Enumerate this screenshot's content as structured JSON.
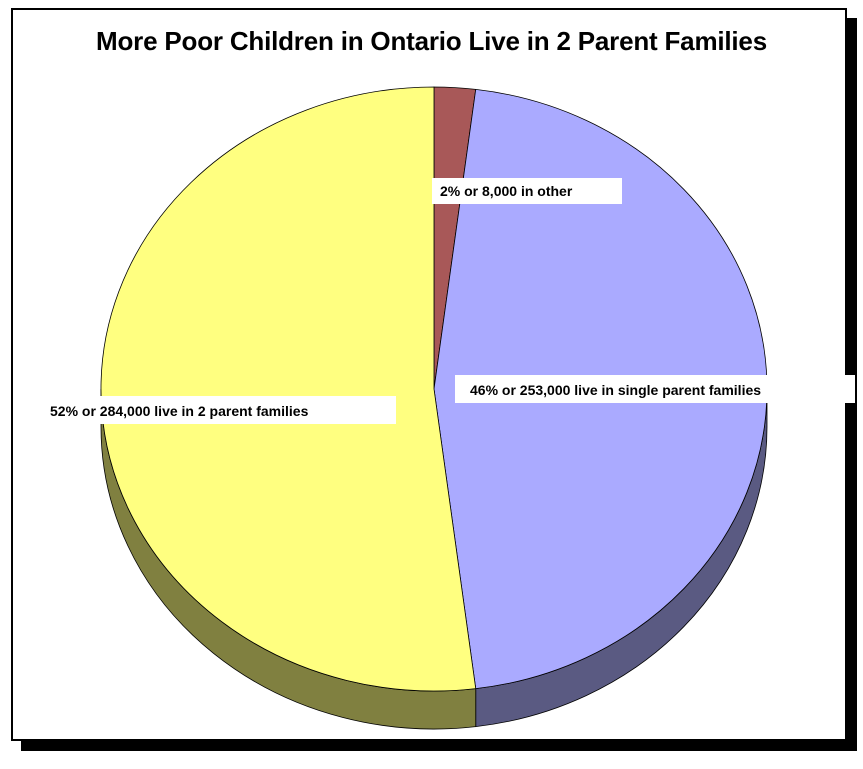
{
  "chart_data": {
    "type": "pie",
    "title": "More Poor Children in Ontario Live in 2 Parent Families",
    "slices": [
      {
        "label": "2% or 8,000 in other",
        "percent": 2,
        "value": 8000,
        "color": "#a85858",
        "side_color": "#6e3a3a"
      },
      {
        "label": "46% or 253,000 live in single parent families",
        "percent": 46,
        "value": 253000,
        "color": "#aaaaff",
        "side_color": "#5a5a82"
      },
      {
        "label": "52% or 284,000 live in 2 parent families",
        "percent": 52,
        "value": 284000,
        "color": "#ffff80",
        "side_color": "#808040"
      }
    ],
    "legend": "none",
    "style": "3d"
  }
}
